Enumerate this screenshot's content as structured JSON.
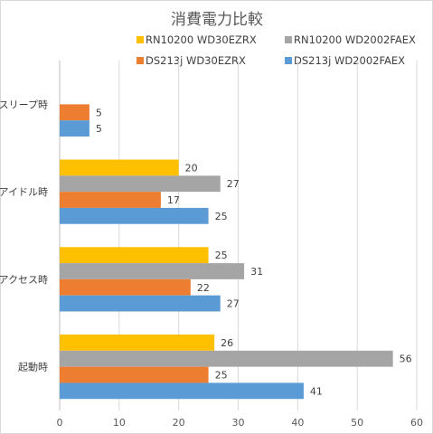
{
  "chart_data": {
    "type": "bar",
    "orientation": "horizontal",
    "title": "消費電力比較",
    "categories": [
      "スリープ時",
      "アイドル時",
      "アクセス時",
      "起動時"
    ],
    "series": [
      {
        "name": "RN10200 WD30EZRX",
        "color": "#ffc000",
        "values": [
          null,
          20,
          25,
          26
        ]
      },
      {
        "name": "RN10200 WD2002FAEX",
        "color": "#a5a5a5",
        "values": [
          null,
          27,
          31,
          56
        ]
      },
      {
        "name": "DS213j WD30EZRX",
        "color": "#ed7d31",
        "values": [
          5,
          17,
          22,
          25
        ]
      },
      {
        "name": "DS213j WD2002FAEX",
        "color": "#5b9bd5",
        "values": [
          5,
          25,
          27,
          41
        ]
      }
    ],
    "xlim": [
      0,
      60
    ],
    "xticks": [
      0,
      10,
      20,
      30,
      40,
      50,
      60
    ],
    "grid": true,
    "legend_position": "top",
    "data_labels": true
  }
}
